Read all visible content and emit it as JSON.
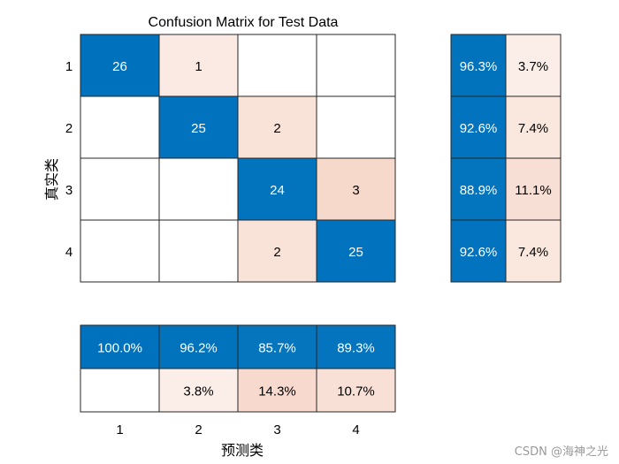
{
  "chart_data": {
    "type": "heatmap",
    "title": "Confusion Matrix for Test Data",
    "xlabel": "预测类",
    "ylabel": "真实类",
    "classes": [
      "1",
      "2",
      "3",
      "4"
    ],
    "matrix": [
      [
        26,
        1,
        null,
        null
      ],
      [
        null,
        25,
        2,
        null
      ],
      [
        null,
        null,
        24,
        3
      ],
      [
        null,
        null,
        2,
        25
      ]
    ],
    "row_summary": [
      [
        "96.3%",
        "3.7%"
      ],
      [
        "92.6%",
        "7.4%"
      ],
      [
        "88.9%",
        "11.1%"
      ],
      [
        "92.6%",
        "7.4%"
      ]
    ],
    "row_summary_values": [
      [
        96.3,
        3.7
      ],
      [
        92.6,
        7.4
      ],
      [
        88.9,
        11.1
      ],
      [
        92.6,
        7.4
      ]
    ],
    "column_summary": [
      [
        "100.0%",
        "96.2%",
        "85.7%",
        "89.3%"
      ],
      [
        "",
        "3.8%",
        "14.3%",
        "10.7%"
      ]
    ],
    "column_summary_values": [
      [
        100.0,
        96.2,
        85.7,
        89.3
      ],
      [
        null,
        3.8,
        14.3,
        10.7
      ]
    ],
    "colors": {
      "correct": "#0072bd",
      "incorrect": "#d95319",
      "text_on_blue": "#ffffff",
      "text_default": "#000000",
      "grid": "#262626"
    }
  },
  "watermark": "CSDN @海神之光"
}
